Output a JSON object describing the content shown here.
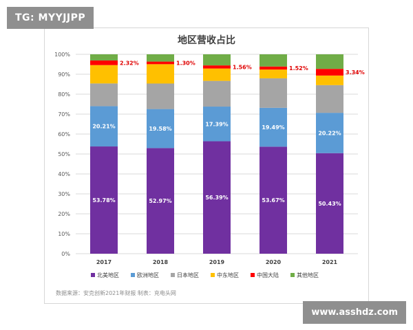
{
  "watermarks": {
    "top": "TG: MYYJJPP",
    "bottom": "www.asshdz.com"
  },
  "chart_data": {
    "type": "bar",
    "stacked": true,
    "title": "地区营收占比",
    "xlabel": "",
    "ylabel": "",
    "ylim": [
      0,
      100
    ],
    "y_ticks": [
      "0%",
      "10%",
      "20%",
      "30%",
      "40%",
      "50%",
      "60%",
      "70%",
      "80%",
      "90%",
      "100%"
    ],
    "grid": true,
    "legend_position": "bottom",
    "categories": [
      "2017",
      "2018",
      "2019",
      "2020",
      "2021"
    ],
    "series": [
      {
        "name": "北美地区",
        "color": "#7030a0",
        "values": [
          53.78,
          52.97,
          56.39,
          53.67,
          50.43
        ],
        "labels": [
          "53.78%",
          "52.97%",
          "56.39%",
          "53.67%",
          "50.43%"
        ]
      },
      {
        "name": "欧洲地区",
        "color": "#5b9bd5",
        "values": [
          20.21,
          19.58,
          17.39,
          19.49,
          20.22
        ],
        "labels": [
          "20.21%",
          "19.58%",
          "17.39%",
          "19.49%",
          "20.22%"
        ]
      },
      {
        "name": "日本地区",
        "color": "#a5a5a5",
        "values": [
          11.4,
          12.8,
          12.9,
          14.8,
          13.9
        ]
      },
      {
        "name": "中东地区",
        "color": "#ffc000",
        "values": [
          9.2,
          9.7,
          6.2,
          4.4,
          4.8
        ]
      },
      {
        "name": "中国大陆",
        "color": "#ff0000",
        "values": [
          2.32,
          1.3,
          1.56,
          1.52,
          3.34
        ],
        "labels": [
          "2.32%",
          "1.30%",
          "1.56%",
          "1.52%",
          "3.34%"
        ]
      },
      {
        "name": "其他地区",
        "color": "#70ad47",
        "values": [
          2.99,
          3.65,
          5.56,
          6.1,
          7.27
        ]
      }
    ],
    "source_note": "数据来源：安克创新2021年财报    制表：充电头网"
  }
}
